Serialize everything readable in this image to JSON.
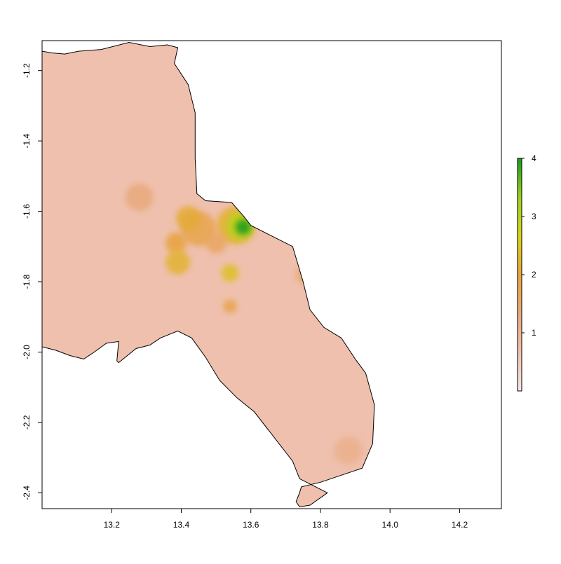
{
  "map": {
    "x_axis": {
      "range": [
        13.0,
        14.32
      ],
      "ticks": [
        {
          "value": 13.2,
          "label": "13.2"
        },
        {
          "value": 13.4,
          "label": "13.4"
        },
        {
          "value": 13.6,
          "label": "13.6"
        },
        {
          "value": 13.8,
          "label": "13.8"
        },
        {
          "value": 14.0,
          "label": "14.0"
        },
        {
          "value": 14.2,
          "label": "14.2"
        }
      ]
    },
    "y_axis": {
      "range": [
        -2.445,
        -1.115
      ],
      "ticks": [
        {
          "value": -1.2,
          "label": "-1.2"
        },
        {
          "value": -1.4,
          "label": "-1.4"
        },
        {
          "value": -1.6,
          "label": "-1.6"
        },
        {
          "value": -1.8,
          "label": "-1.8"
        },
        {
          "value": -2.0,
          "label": "-2.0"
        },
        {
          "value": -2.2,
          "label": "-2.2"
        },
        {
          "value": -2.4,
          "label": "-2.4"
        }
      ]
    },
    "colors": {
      "low": "#f1e6e3",
      "base": "#efc0ad",
      "mid": "#e8a878",
      "orange": "#e7a33c",
      "yellow": "#d6d416",
      "green_light": "#9bcf22",
      "green": "#1a9a1a",
      "outline": "#000000"
    },
    "boundary": [
      [
        13.065,
        -1.153
      ],
      [
        13.105,
        -1.145
      ],
      [
        13.17,
        -1.14
      ],
      [
        13.25,
        -1.12
      ],
      [
        13.31,
        -1.132
      ],
      [
        13.36,
        -1.127
      ],
      [
        13.39,
        -1.135
      ],
      [
        13.38,
        -1.18
      ],
      [
        13.42,
        -1.24
      ],
      [
        13.44,
        -1.32
      ],
      [
        13.44,
        -1.45
      ],
      [
        13.445,
        -1.55
      ],
      [
        13.47,
        -1.57
      ],
      [
        13.545,
        -1.575
      ],
      [
        13.58,
        -1.615
      ],
      [
        13.6,
        -1.64
      ],
      [
        13.66,
        -1.67
      ],
      [
        13.72,
        -1.7
      ],
      [
        13.75,
        -1.8
      ],
      [
        13.77,
        -1.88
      ],
      [
        13.81,
        -1.93
      ],
      [
        13.86,
        -1.96
      ],
      [
        13.9,
        -2.02
      ],
      [
        13.93,
        -2.06
      ],
      [
        13.955,
        -2.15
      ],
      [
        13.95,
        -2.26
      ],
      [
        13.92,
        -2.33
      ],
      [
        13.8,
        -2.37
      ],
      [
        13.745,
        -2.383
      ],
      [
        13.74,
        -2.4
      ],
      [
        13.73,
        -2.425
      ],
      [
        13.74,
        -2.44
      ],
      [
        13.77,
        -2.435
      ],
      [
        13.82,
        -2.4
      ],
      [
        13.74,
        -2.36
      ],
      [
        13.72,
        -2.31
      ],
      [
        13.61,
        -2.17
      ],
      [
        13.56,
        -2.13
      ],
      [
        13.51,
        -2.08
      ],
      [
        13.47,
        -2.015
      ],
      [
        13.43,
        -1.96
      ],
      [
        13.39,
        -1.94
      ],
      [
        13.34,
        -1.96
      ],
      [
        13.31,
        -1.98
      ],
      [
        13.27,
        -1.99
      ],
      [
        13.22,
        -2.03
      ],
      [
        13.215,
        -2.025
      ],
      [
        13.22,
        -1.97
      ],
      [
        13.185,
        -1.975
      ],
      [
        13.15,
        -2.0
      ],
      [
        13.12,
        -2.02
      ],
      [
        13.08,
        -2.01
      ],
      [
        13.04,
        -1.995
      ],
      [
        13.0,
        -1.985
      ],
      [
        12.98,
        -1.98
      ],
      [
        12.94,
        -1.975
      ],
      [
        12.915,
        -1.96
      ],
      [
        12.915,
        -1.9
      ],
      [
        12.92,
        -1.82
      ],
      [
        12.91,
        -1.78
      ],
      [
        12.91,
        -1.7
      ],
      [
        12.93,
        -1.63
      ],
      [
        12.94,
        -1.58
      ],
      [
        12.95,
        -1.52
      ],
      [
        12.95,
        -1.48
      ],
      [
        12.93,
        -1.42
      ],
      [
        12.915,
        -1.34
      ],
      [
        12.94,
        -1.3
      ],
      [
        12.97,
        -1.26
      ],
      [
        12.96,
        -1.22
      ],
      [
        12.93,
        -1.18
      ],
      [
        12.89,
        -1.165
      ],
      [
        12.88,
        -1.155
      ],
      [
        12.9,
        -1.14
      ],
      [
        12.93,
        -1.14
      ],
      [
        12.95,
        -1.145
      ],
      [
        13.0,
        -1.145
      ],
      [
        13.03,
        -1.15
      ]
    ],
    "hotspots": [
      {
        "x": 13.556,
        "y": -1.64,
        "r": 0.055,
        "value": 2.2
      },
      {
        "x": 13.57,
        "y": -1.642,
        "r": 0.04,
        "value": 3.0
      },
      {
        "x": 13.578,
        "y": -1.645,
        "r": 0.022,
        "value": 4.0
      },
      {
        "x": 13.45,
        "y": -1.65,
        "r": 0.05,
        "value": 1.8
      },
      {
        "x": 13.42,
        "y": -1.62,
        "r": 0.035,
        "value": 2.1
      },
      {
        "x": 13.385,
        "y": -1.69,
        "r": 0.03,
        "value": 2.0
      },
      {
        "x": 13.39,
        "y": -1.745,
        "r": 0.035,
        "value": 2.2
      },
      {
        "x": 13.54,
        "y": -1.775,
        "r": 0.025,
        "value": 2.4
      },
      {
        "x": 13.54,
        "y": -1.87,
        "r": 0.02,
        "value": 1.8
      },
      {
        "x": 13.5,
        "y": -1.69,
        "r": 0.03,
        "value": 1.6
      },
      {
        "x": 13.65,
        "y": -1.62,
        "r": 0.03,
        "value": 1.7
      },
      {
        "x": 13.76,
        "y": -1.78,
        "r": 0.03,
        "value": 1.4
      },
      {
        "x": 13.52,
        "y": -1.32,
        "r": 0.03,
        "value": 1.1
      },
      {
        "x": 13.49,
        "y": -1.48,
        "r": 0.03,
        "value": 1.2
      },
      {
        "x": 13.28,
        "y": -1.56,
        "r": 0.04,
        "value": 1.3
      },
      {
        "x": 13.88,
        "y": -2.28,
        "r": 0.04,
        "value": 1.1
      }
    ],
    "legend": {
      "range": [
        0,
        4
      ],
      "ticks": [
        {
          "value": 1,
          "label": "1"
        },
        {
          "value": 2,
          "label": "2"
        },
        {
          "value": 3,
          "label": "3"
        },
        {
          "value": 4,
          "label": "4"
        }
      ],
      "stops": [
        "#f1e6e3",
        "#efc0ad",
        "#e8a878",
        "#e7a33c",
        "#d6d416",
        "#9bcf22",
        "#1a9a1a"
      ]
    }
  }
}
